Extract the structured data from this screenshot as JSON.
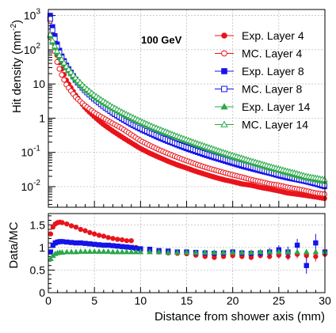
{
  "chart_data": [
    {
      "type": "scatter",
      "panel": "top",
      "title": "",
      "annotation": "100 GeV",
      "annotation_color": "#e8141b",
      "xlabel": "Distance from shower axis (mm)",
      "ylabel": "Hit density (mm⁻²)",
      "ylabel_base": "Hit density (mm",
      "ylabel_exp": "-2",
      "ylabel_close": ")",
      "xlim": [
        0,
        30
      ],
      "ylim": [
        0.0025,
        1500
      ],
      "yscale": "log",
      "grid": true,
      "legend_position": "top-right",
      "x_ticks": [
        0,
        5,
        10,
        15,
        20,
        25,
        30
      ],
      "y_ticks": [
        {
          "value": 0.01,
          "base": "10",
          "exp": "-2"
        },
        {
          "value": 0.1,
          "base": "10",
          "exp": "-1"
        },
        {
          "value": 1,
          "base": "1",
          "exp": ""
        },
        {
          "value": 10,
          "base": "10",
          "exp": ""
        },
        {
          "value": 100,
          "base": "10",
          "exp": "2"
        },
        {
          "value": 1000,
          "base": "10",
          "exp": "3"
        }
      ],
      "series": [
        {
          "name": "Exp. Layer 4",
          "color": "#e8141b",
          "marker": "circle-filled",
          "x": [
            0.2,
            0.5,
            1,
            1.5,
            2,
            3,
            4,
            5,
            6,
            7,
            8,
            9,
            10,
            11,
            12,
            13,
            14,
            15,
            16,
            17,
            18,
            19,
            20,
            21,
            22,
            23,
            24,
            25,
            26,
            27,
            28,
            29,
            30
          ],
          "y": [
            900,
            250,
            60,
            25,
            12,
            4.5,
            2.0,
            1.1,
            0.65,
            0.42,
            0.28,
            0.19,
            0.13,
            0.095,
            0.072,
            0.055,
            0.043,
            0.035,
            0.028,
            0.023,
            0.019,
            0.016,
            0.014,
            0.012,
            0.011,
            0.0095,
            0.0085,
            0.0075,
            0.0065,
            0.006,
            0.0055,
            0.005,
            0.0045
          ]
        },
        {
          "name": "MC. Layer 4",
          "color": "#e8141b",
          "marker": "circle-open",
          "x": [
            0.2,
            0.5,
            1,
            1.5,
            2,
            3,
            4,
            5,
            6,
            7,
            8,
            9,
            10,
            11,
            12,
            13,
            14,
            15,
            16,
            17,
            18,
            19,
            20,
            21,
            22,
            23,
            24,
            25,
            26,
            27,
            28,
            29,
            30
          ],
          "y": [
            700,
            160,
            38,
            17,
            9.0,
            4.0,
            2.3,
            1.45,
            1.0,
            0.7,
            0.5,
            0.33,
            0.22,
            0.16,
            0.12,
            0.092,
            0.072,
            0.057,
            0.046,
            0.037,
            0.031,
            0.026,
            0.022,
            0.019,
            0.016,
            0.014,
            0.012,
            0.011,
            0.0095,
            0.0085,
            0.0075,
            0.0065,
            0.006
          ]
        },
        {
          "name": "Exp. Layer 8",
          "color": "#1414e8",
          "marker": "square-filled",
          "x": [
            0.2,
            0.5,
            1,
            1.5,
            2,
            3,
            4,
            5,
            6,
            7,
            8,
            9,
            10,
            11,
            12,
            13,
            14,
            15,
            16,
            17,
            18,
            19,
            20,
            21,
            22,
            23,
            24,
            25,
            26,
            27,
            28,
            29,
            30
          ],
          "y": [
            1000,
            400,
            130,
            60,
            33,
            13,
            6.5,
            3.6,
            2.2,
            1.4,
            0.95,
            0.66,
            0.48,
            0.36,
            0.27,
            0.21,
            0.165,
            0.13,
            0.105,
            0.085,
            0.07,
            0.058,
            0.048,
            0.04,
            0.034,
            0.029,
            0.025,
            0.021,
            0.018,
            0.016,
            0.014,
            0.012,
            0.01
          ]
        },
        {
          "name": "MC. Layer 8",
          "color": "#1414e8",
          "marker": "square-open",
          "x": [
            0.2,
            0.5,
            1,
            1.5,
            2,
            3,
            4,
            5,
            6,
            7,
            8,
            9,
            10,
            11,
            12,
            13,
            14,
            15,
            16,
            17,
            18,
            19,
            20,
            21,
            22,
            23,
            24,
            25,
            26,
            27,
            28,
            29,
            30
          ],
          "y": [
            800,
            320,
            110,
            55,
            31,
            12.5,
            6.3,
            3.6,
            2.2,
            1.45,
            1.0,
            0.7,
            0.52,
            0.39,
            0.3,
            0.23,
            0.18,
            0.145,
            0.117,
            0.095,
            0.078,
            0.065,
            0.054,
            0.045,
            0.038,
            0.032,
            0.027,
            0.023,
            0.02,
            0.017,
            0.015,
            0.013,
            0.011
          ]
        },
        {
          "name": "Exp. Layer 14",
          "color": "#2ba84a",
          "marker": "triangle-filled",
          "x": [
            0.2,
            0.5,
            1,
            1.5,
            2,
            3,
            4,
            5,
            6,
            7,
            8,
            9,
            10,
            11,
            12,
            13,
            14,
            15,
            16,
            17,
            18,
            19,
            20,
            21,
            22,
            23,
            24,
            25,
            26,
            27,
            28,
            29,
            30
          ],
          "y": [
            250,
            150,
            75,
            45,
            28,
            13,
            7.0,
            4.2,
            2.8,
            1.9,
            1.35,
            1.0,
            0.75,
            0.57,
            0.44,
            0.345,
            0.27,
            0.215,
            0.17,
            0.138,
            0.112,
            0.09,
            0.074,
            0.061,
            0.051,
            0.042,
            0.035,
            0.03,
            0.025,
            0.021,
            0.018,
            0.016,
            0.014
          ]
        },
        {
          "name": "MC. Layer 14",
          "color": "#2ba84a",
          "marker": "triangle-open",
          "x": [
            0.2,
            0.5,
            1,
            1.5,
            2,
            3,
            4,
            5,
            6,
            7,
            8,
            9,
            10,
            11,
            12,
            13,
            14,
            15,
            16,
            17,
            18,
            19,
            20,
            21,
            22,
            23,
            24,
            25,
            26,
            27,
            28,
            29,
            30
          ],
          "y": [
            280,
            170,
            85,
            50,
            31,
            14.5,
            7.8,
            4.7,
            3.1,
            2.1,
            1.5,
            1.1,
            0.82,
            0.62,
            0.48,
            0.375,
            0.295,
            0.235,
            0.188,
            0.152,
            0.123,
            0.1,
            0.082,
            0.068,
            0.056,
            0.047,
            0.039,
            0.033,
            0.028,
            0.024,
            0.02,
            0.018,
            0.016
          ]
        }
      ]
    },
    {
      "type": "scatter",
      "panel": "bottom",
      "title": "",
      "xlabel": "Distance from shower axis (mm)",
      "ylabel": "Data/MC",
      "xlim": [
        0,
        30
      ],
      "ylim": [
        0,
        1.75
      ],
      "yscale": "linear",
      "grid": true,
      "x_ticks": [
        0,
        5,
        10,
        15,
        20,
        25,
        30
      ],
      "y_ticks": [
        0,
        0.5,
        1,
        1.5
      ],
      "series": [
        {
          "name": "Exp. Layer 4 / MC. Layer 4",
          "color": "#e8141b",
          "marker": "circle-filled",
          "x": [
            0.25,
            0.5,
            0.75,
            1,
            1.25,
            1.5,
            2,
            2.5,
            3,
            3.5,
            4,
            4.5,
            5,
            5.5,
            6,
            6.5,
            7,
            7.5,
            8,
            8.5,
            9,
            9.5,
            10,
            11,
            12,
            13,
            14,
            15,
            16,
            17,
            18,
            19,
            20,
            21,
            22,
            23,
            24,
            25,
            26,
            27,
            28,
            29,
            30
          ],
          "y": [
            1.3,
            1.45,
            1.52,
            1.55,
            1.56,
            1.55,
            1.52,
            1.48,
            1.45,
            1.4,
            1.37,
            1.33,
            1.3,
            1.27,
            1.25,
            1.22,
            1.2,
            1.18,
            1.17,
            1.15,
            1.15,
            1.0,
            0.95,
            0.92,
            0.9,
            0.88,
            0.87,
            0.86,
            0.83,
            0.8,
            0.78,
            0.8,
            0.82,
            0.8,
            0.78,
            0.82,
            0.8,
            0.83,
            0.8,
            0.85,
            0.82,
            0.8,
            0.85
          ],
          "err": [
            0.05,
            0.04,
            0.03,
            0.03,
            0.03,
            0.03,
            0.03,
            0.03,
            0.03,
            0.03,
            0.03,
            0.03,
            0.03,
            0.03,
            0.03,
            0.03,
            0.03,
            0.03,
            0.03,
            0.03,
            0.03,
            0.03,
            0.03,
            0.03,
            0.03,
            0.03,
            0.03,
            0.03,
            0.03,
            0.04,
            0.04,
            0.04,
            0.05,
            0.05,
            0.05,
            0.06,
            0.06,
            0.07,
            0.08,
            0.09,
            0.1,
            0.11,
            0.12
          ]
        },
        {
          "name": "Exp. Layer 8 / MC. Layer 8",
          "color": "#1414e8",
          "marker": "square-filled",
          "x": [
            0.25,
            0.5,
            0.75,
            1,
            1.25,
            1.5,
            2,
            2.5,
            3,
            3.5,
            4,
            4.5,
            5,
            5.5,
            6,
            6.5,
            7,
            7.5,
            8,
            8.5,
            9,
            9.5,
            10,
            11,
            12,
            13,
            14,
            15,
            16,
            17,
            18,
            19,
            20,
            21,
            22,
            23,
            24,
            25,
            26,
            27,
            28,
            29,
            30
          ],
          "y": [
            0.9,
            1.05,
            1.1,
            1.12,
            1.13,
            1.13,
            1.12,
            1.11,
            1.1,
            1.1,
            1.09,
            1.08,
            1.07,
            1.06,
            1.05,
            1.05,
            1.04,
            1.03,
            1.02,
            1.01,
            1.0,
            0.98,
            0.97,
            0.96,
            0.93,
            0.92,
            0.9,
            0.9,
            0.89,
            0.88,
            0.87,
            0.88,
            0.9,
            0.88,
            0.87,
            0.88,
            0.9,
            0.95,
            0.9,
            1.05,
            0.6,
            1.1,
            0.9
          ],
          "err": [
            0.05,
            0.04,
            0.03,
            0.03,
            0.03,
            0.03,
            0.03,
            0.03,
            0.03,
            0.03,
            0.03,
            0.03,
            0.03,
            0.03,
            0.03,
            0.03,
            0.03,
            0.03,
            0.03,
            0.03,
            0.03,
            0.03,
            0.03,
            0.03,
            0.03,
            0.03,
            0.03,
            0.04,
            0.04,
            0.04,
            0.05,
            0.05,
            0.06,
            0.06,
            0.07,
            0.08,
            0.09,
            0.1,
            0.12,
            0.14,
            0.18,
            0.2,
            0.2
          ]
        },
        {
          "name": "Exp. Layer 14 / MC. Layer 14",
          "color": "#2ba84a",
          "marker": "triangle-filled",
          "x": [
            0.25,
            0.5,
            0.75,
            1,
            1.25,
            1.5,
            2,
            2.5,
            3,
            3.5,
            4,
            4.5,
            5,
            5.5,
            6,
            6.5,
            7,
            7.5,
            8,
            8.5,
            9,
            9.5,
            10,
            11,
            12,
            13,
            14,
            15,
            16,
            17,
            18,
            19,
            20,
            21,
            22,
            23,
            24,
            25,
            26,
            27,
            28,
            29,
            30
          ],
          "y": [
            0.75,
            0.82,
            0.86,
            0.88,
            0.89,
            0.89,
            0.9,
            0.9,
            0.9,
            0.91,
            0.91,
            0.91,
            0.91,
            0.91,
            0.91,
            0.91,
            0.9,
            0.9,
            0.9,
            0.9,
            0.9,
            0.9,
            0.9,
            0.9,
            0.9,
            0.89,
            0.89,
            0.89,
            0.89,
            0.89,
            0.89,
            0.89,
            0.89,
            0.89,
            0.89,
            0.9,
            0.9,
            0.9,
            0.9,
            0.9,
            0.9,
            0.9,
            0.9
          ],
          "err": [
            0.03,
            0.02,
            0.02,
            0.02,
            0.02,
            0.02,
            0.02,
            0.02,
            0.02,
            0.02,
            0.02,
            0.02,
            0.02,
            0.02,
            0.02,
            0.02,
            0.02,
            0.02,
            0.02,
            0.02,
            0.02,
            0.02,
            0.02,
            0.02,
            0.02,
            0.02,
            0.02,
            0.02,
            0.02,
            0.02,
            0.02,
            0.02,
            0.02,
            0.03,
            0.03,
            0.03,
            0.03,
            0.04,
            0.04,
            0.04,
            0.05,
            0.05,
            0.06
          ]
        }
      ]
    }
  ]
}
